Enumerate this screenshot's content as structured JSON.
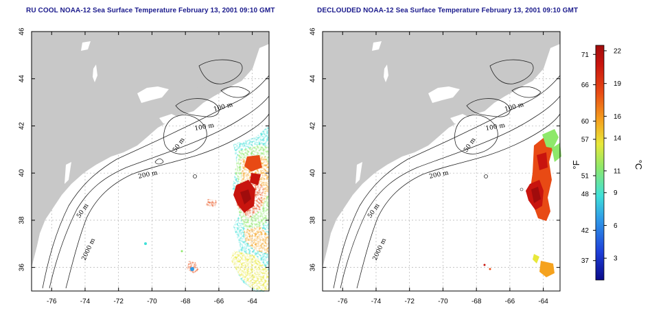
{
  "panels": [
    {
      "id": "raw",
      "title": "RU COOL NOAA-12 Sea Surface Temperature February 13, 2001 09:10 GMT"
    },
    {
      "id": "declouded",
      "title": "DECLOUDED NOAA-12 Sea Surface Temperature February 13, 2001 09:10 GMT"
    }
  ],
  "axes": {
    "lon_ticks": [
      -76,
      -74,
      -72,
      -70,
      -68,
      -66,
      -64
    ],
    "lat_ticks": [
      36,
      38,
      40,
      42,
      44,
      46
    ],
    "lon_range": [
      -77.2,
      -63.0
    ],
    "lat_range": [
      35.0,
      46.0
    ]
  },
  "contour_labels": [
    "100 m",
    "100 m",
    "50 m",
    "200 m",
    "50 m",
    "2000 m"
  ],
  "colorbar": {
    "fahrenheit_ticks": [
      37,
      42,
      48,
      51,
      57,
      60,
      66,
      71
    ],
    "celsius_ticks": [
      3,
      6,
      9,
      11,
      14,
      16,
      19,
      22
    ],
    "fahrenheit_unit": "°F",
    "celsius_unit": "°C",
    "celsius_range": [
      1,
      22.5
    ],
    "colors": [
      "#0a0a8a",
      "#1e3fd9",
      "#2f9be8",
      "#3fe0d8",
      "#8ee86a",
      "#e8e83a",
      "#f5a21e",
      "#e84a14",
      "#c8140e",
      "#a00c0c"
    ]
  },
  "colors": {
    "land": "#c8c8c8",
    "grid": "#b0b0b0"
  }
}
